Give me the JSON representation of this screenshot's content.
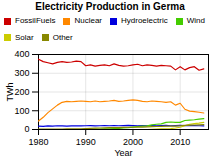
{
  "chart_data": {
    "type": "line",
    "title": "Electricity Production in Germa",
    "xlabel": "Year",
    "ylabel": "TWh",
    "x": [
      1980,
      1981,
      1982,
      1983,
      1984,
      1985,
      1986,
      1987,
      1988,
      1989,
      1990,
      1991,
      1992,
      1993,
      1994,
      1995,
      1996,
      1997,
      1998,
      1999,
      2000,
      2001,
      2002,
      2003,
      2004,
      2005,
      2006,
      2007,
      2008,
      2009,
      2010,
      2011,
      2012,
      2013,
      2014,
      2015
    ],
    "series": [
      {
        "name": "FossilFuels",
        "color": "#cc0000",
        "values": [
          375,
          362,
          356,
          350,
          358,
          362,
          358,
          360,
          365,
          362,
          340,
          345,
          338,
          342,
          345,
          340,
          350,
          342,
          338,
          340,
          345,
          348,
          340,
          345,
          342,
          338,
          342,
          340,
          338,
          318,
          335,
          318,
          330,
          335,
          316,
          323
        ]
      },
      {
        "name": "Nuclear",
        "color": "#ff8800",
        "values": [
          45,
          65,
          90,
          110,
          130,
          145,
          150,
          148,
          150,
          152,
          150,
          148,
          152,
          148,
          150,
          152,
          155,
          150,
          152,
          155,
          158,
          155,
          150,
          148,
          152,
          150,
          148,
          145,
          148,
          130,
          140,
          108,
          98,
          95,
          92,
          88
        ]
      },
      {
        "name": "Hydroelectric",
        "color": "#0000dd",
        "values": [
          18,
          17,
          19,
          18,
          20,
          19,
          18,
          19,
          20,
          19,
          20,
          21,
          19,
          20,
          21,
          20,
          21,
          20,
          21,
          22,
          21,
          20,
          21,
          20,
          21,
          20,
          21,
          22,
          20,
          21,
          22,
          21,
          22,
          21,
          20,
          19
        ]
      },
      {
        "name": "Wind",
        "color": "#44cc00",
        "values": [
          0,
          0,
          0,
          0,
          0,
          0,
          0,
          0,
          0,
          0,
          1,
          1,
          2,
          2,
          3,
          4,
          5,
          6,
          8,
          10,
          13,
          16,
          18,
          19,
          25,
          28,
          30,
          38,
          40,
          38,
          38,
          48,
          50,
          52,
          55,
          58
        ]
      },
      {
        "name": "Solar",
        "color": "#cccc00",
        "values": [
          0,
          0,
          0,
          0,
          0,
          0,
          0,
          0,
          0,
          0,
          0,
          0,
          0,
          0,
          0,
          0,
          0,
          0,
          0,
          0,
          0,
          0,
          0,
          0,
          1,
          2,
          3,
          4,
          5,
          8,
          12,
          20,
          28,
          31,
          34,
          38
        ]
      },
      {
        "name": "Other",
        "color": "#888800",
        "values": [
          2,
          2,
          2,
          2,
          2,
          2,
          3,
          3,
          3,
          3,
          5,
          6,
          7,
          8,
          9,
          10,
          10,
          10,
          11,
          12,
          12,
          13,
          13,
          14,
          15,
          16,
          17,
          18,
          18,
          18,
          20,
          22,
          23,
          24,
          25,
          26
        ]
      }
    ],
    "xlim": [
      1980,
      2016
    ],
    "xticks": [
      1980,
      1990,
      2000,
      2010
    ],
    "ylim": [
      0,
      400
    ],
    "yticks": [
      0,
      100,
      200,
      300,
      400
    ],
    "grid": true,
    "legend": "upper left"
  }
}
